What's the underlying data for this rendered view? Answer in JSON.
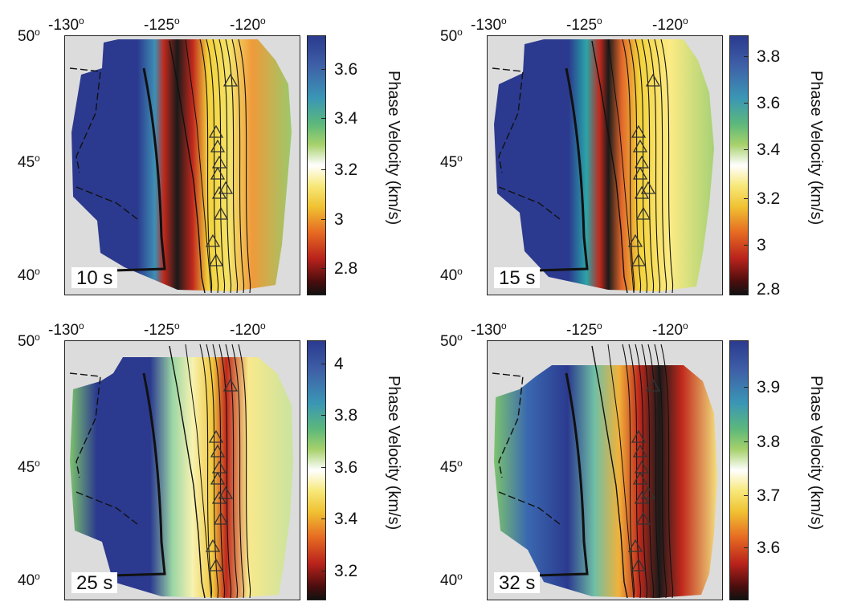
{
  "panels": [
    {
      "period_label": "10 s",
      "lon_ticks": [
        "-130",
        "-125",
        "-120"
      ],
      "lat_ticks": [
        "50",
        "45",
        "40"
      ],
      "colorbar": {
        "label": "Phase Velocity (km/s)",
        "ticks": [
          "3.6",
          "3.4",
          "3.2",
          "3",
          "2.8"
        ],
        "range": [
          2.7,
          3.75
        ]
      }
    },
    {
      "period_label": "15 s",
      "lon_ticks": [
        "-130",
        "-125",
        "-120"
      ],
      "lat_ticks": [
        "50",
        "45",
        "40"
      ],
      "colorbar": {
        "label": "Phase Velocity (km/s)",
        "ticks": [
          "3.8",
          "3.6",
          "3.4",
          "3.2",
          "3",
          "2.8"
        ],
        "range": [
          2.8,
          3.88
        ]
      }
    },
    {
      "period_label": "25 s",
      "lon_ticks": [
        "-130",
        "-125",
        "-120"
      ],
      "lat_ticks": [
        "50",
        "45",
        "40"
      ],
      "colorbar": {
        "label": "Phase Velocity (km/s)",
        "ticks": [
          "4",
          "3.8",
          "3.6",
          "3.4",
          "3.2"
        ],
        "range": [
          3.1,
          4.05
        ]
      }
    },
    {
      "period_label": "32 s",
      "lon_ticks": [
        "-130",
        "-125",
        "-120"
      ],
      "lat_ticks": [
        "50",
        "45",
        "40"
      ],
      "colorbar": {
        "label": "Phase Velocity (km/s)",
        "ticks": [
          "3.9",
          "3.8",
          "3.7",
          "3.6"
        ],
        "range": [
          3.5,
          3.98
        ]
      }
    }
  ],
  "degree_symbol": "o",
  "colors": {
    "land_background": "#dcdcdc",
    "high_velocity": "#2b3a8f",
    "mid_velocity": "#ffffff",
    "low_velocity": "#c0281c",
    "lowest_velocity": "#1a1a1a"
  },
  "map_features": [
    "coastline",
    "state-borders",
    "slab-depth-contours",
    "volcano-triangles"
  ]
}
